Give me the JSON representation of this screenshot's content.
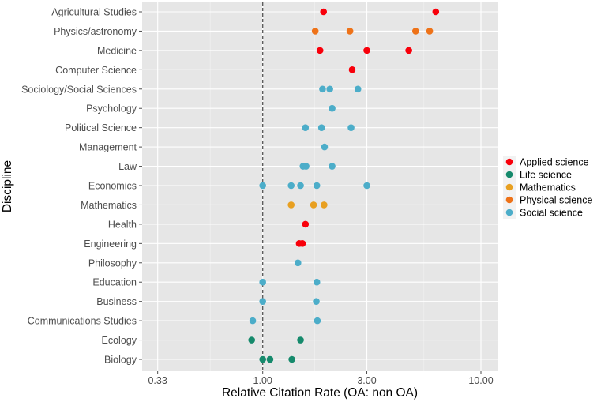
{
  "chart_data": {
    "type": "scatter",
    "xlabel": "Relative Citation Rate (OA: non OA)",
    "ylabel": "Discipline",
    "x_scale": "log10",
    "xlim": [
      0.3,
      12
    ],
    "x_ticks": [
      0.33,
      1.0,
      3.0,
      10.0
    ],
    "x_tick_labels": [
      "0.33",
      "1.00",
      "3.00",
      "10.00"
    ],
    "reference_line": {
      "x": 1.0,
      "style": "dashed"
    },
    "grid": true,
    "legend_position": "right",
    "categories": [
      "Agricultural Studies",
      "Physics/astronomy",
      "Medicine",
      "Computer Science",
      "Sociology/Social Sciences",
      "Psychology",
      "Political Science",
      "Management",
      "Law",
      "Economics",
      "Mathematics",
      "Health",
      "Engineering",
      "Philosophy",
      "Education",
      "Business",
      "Communications Studies",
      "Ecology",
      "Biology"
    ],
    "legend": [
      {
        "name": "Applied science",
        "color": "#F8000B"
      },
      {
        "name": "Life science",
        "color": "#168A6C"
      },
      {
        "name": "Mathematics",
        "color": "#E8A021"
      },
      {
        "name": "Physical science",
        "color": "#EE7218"
      },
      {
        "name": "Social science",
        "color": "#4CADC9"
      }
    ],
    "points": [
      {
        "category": "Agricultural Studies",
        "group": "Applied science",
        "values": [
          1.9,
          6.21
        ]
      },
      {
        "category": "Physics/astronomy",
        "group": "Physical science",
        "values": [
          1.74,
          2.51,
          5.02,
          5.82
        ]
      },
      {
        "category": "Medicine",
        "group": "Applied science",
        "values": [
          1.83,
          3.0,
          4.67
        ]
      },
      {
        "category": "Computer Science",
        "group": "Applied science",
        "values": [
          2.57
        ]
      },
      {
        "category": "Sociology/Social Sciences",
        "group": "Social science",
        "values": [
          1.88,
          2.03,
          2.73
        ]
      },
      {
        "category": "Psychology",
        "group": "Social science",
        "values": [
          2.08
        ]
      },
      {
        "category": "Political Science",
        "group": "Social science",
        "values": [
          1.57,
          1.86,
          2.54
        ]
      },
      {
        "category": "Management",
        "group": "Social science",
        "values": [
          1.92
        ]
      },
      {
        "category": "Law",
        "group": "Social science",
        "values": [
          1.53,
          1.58,
          2.08
        ]
      },
      {
        "category": "Economics",
        "group": "Social science",
        "values": [
          1.0,
          1.35,
          1.49,
          1.77,
          3.0
        ]
      },
      {
        "category": "Mathematics",
        "group": "Mathematics",
        "values": [
          1.35,
          1.71,
          1.91
        ]
      },
      {
        "category": "Health",
        "group": "Applied science",
        "values": [
          1.57
        ]
      },
      {
        "category": "Engineering",
        "group": "Applied science",
        "values": [
          1.47,
          1.52
        ]
      },
      {
        "category": "Philosophy",
        "group": "Social science",
        "values": [
          1.45
        ]
      },
      {
        "category": "Education",
        "group": "Social science",
        "values": [
          1.0,
          1.77
        ]
      },
      {
        "category": "Business",
        "group": "Social science",
        "values": [
          1.0,
          1.76
        ]
      },
      {
        "category": "Communications Studies",
        "group": "Social science",
        "values": [
          0.9,
          1.78
        ]
      },
      {
        "category": "Ecology",
        "group": "Life science",
        "values": [
          0.89,
          1.49
        ]
      },
      {
        "category": "Biology",
        "group": "Life science",
        "values": [
          1.0,
          1.08,
          1.36
        ]
      }
    ]
  }
}
